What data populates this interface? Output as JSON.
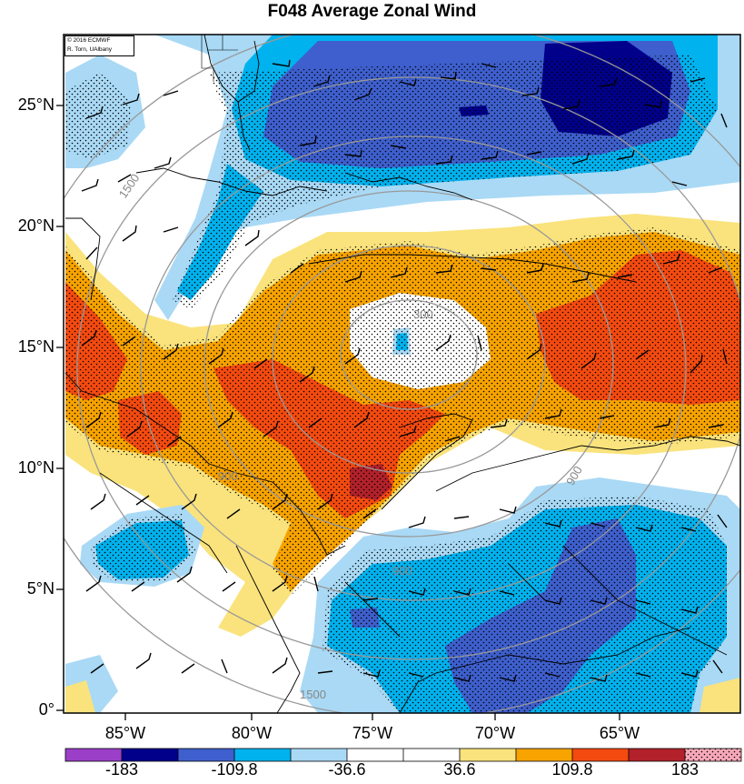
{
  "title": "F048 Average Zonal Wind",
  "credit": {
    "line1": "© 2016 ECMWF",
    "line2": "R. Torn, UAlbany"
  },
  "axes": {
    "latitude_labels": [
      "25°N",
      "20°N",
      "15°N",
      "10°N",
      "5°N",
      "0°"
    ],
    "longitude_labels": [
      "85°W",
      "80°W",
      "75°W",
      "70°W",
      "65°W"
    ]
  },
  "colorbar": {
    "labels": [
      "-183",
      "-109.8",
      "-36.6",
      "36.6",
      "109.8",
      "183"
    ],
    "colors": [
      "#9b3fc9",
      "#00008b",
      "#3e5fcd",
      "#00b2ee",
      "#a9d9f5",
      "#ffffff",
      "#ffffff",
      "#fae37c",
      "#f7a300",
      "#f44a10",
      "#b3212a",
      "#f7a8b8"
    ]
  },
  "range_ring_labels": [
    "300",
    "900",
    "1500"
  ],
  "colors": {
    "dark_red": "#b3212a",
    "red": "#f44a10",
    "orange": "#f7a300",
    "yellow": "#fae37c",
    "light_blue": "#a9d9f5",
    "cyan": "#00b2ee",
    "blue": "#3e5fcd",
    "navy": "#00008b"
  }
}
